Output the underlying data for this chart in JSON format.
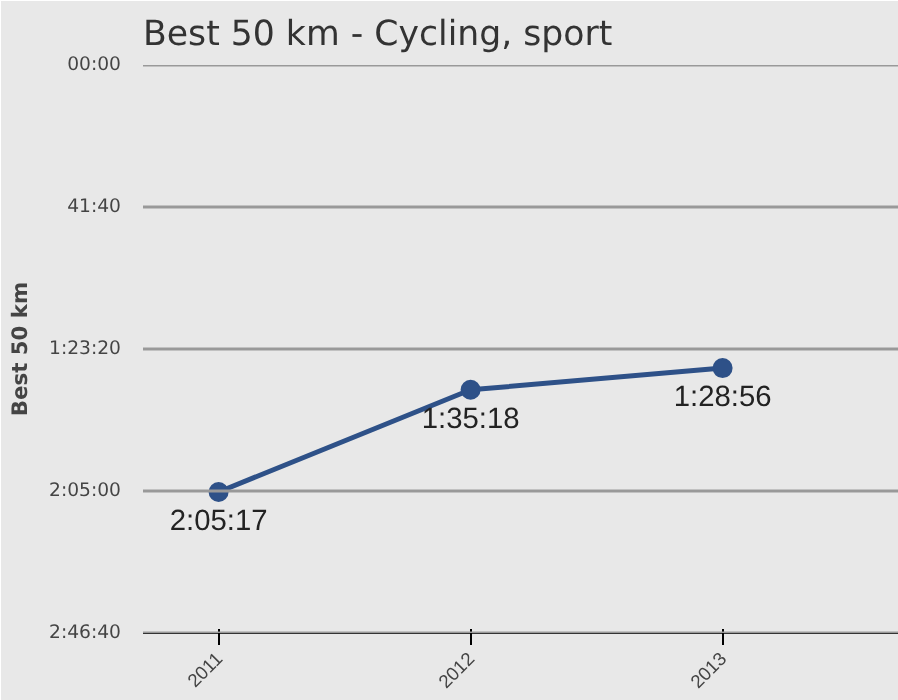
{
  "chart_data": {
    "type": "line",
    "title": "Best 50 km - Cycling, sport",
    "ylabel": "Best 50 km",
    "categories": [
      "2011",
      "2012",
      "2013"
    ],
    "series": [
      {
        "color": "#2e5188",
        "values": [
          7517,
          5718,
          5336
        ],
        "value_labels": [
          "2:05:17",
          "1:35:18",
          "1:28:56"
        ]
      }
    ],
    "ylim": [
      10000,
      0
    ],
    "yticks": [
      {
        "value": 0,
        "label": "00:00"
      },
      {
        "value": 2500,
        "label": "41:40"
      },
      {
        "value": 5000,
        "label": "1:23:20"
      },
      {
        "value": 7500,
        "label": "2:05:00"
      },
      {
        "value": 10000,
        "label": "2:46:40"
      }
    ],
    "grid": "y",
    "marker": "circle",
    "line_style": "solid"
  }
}
